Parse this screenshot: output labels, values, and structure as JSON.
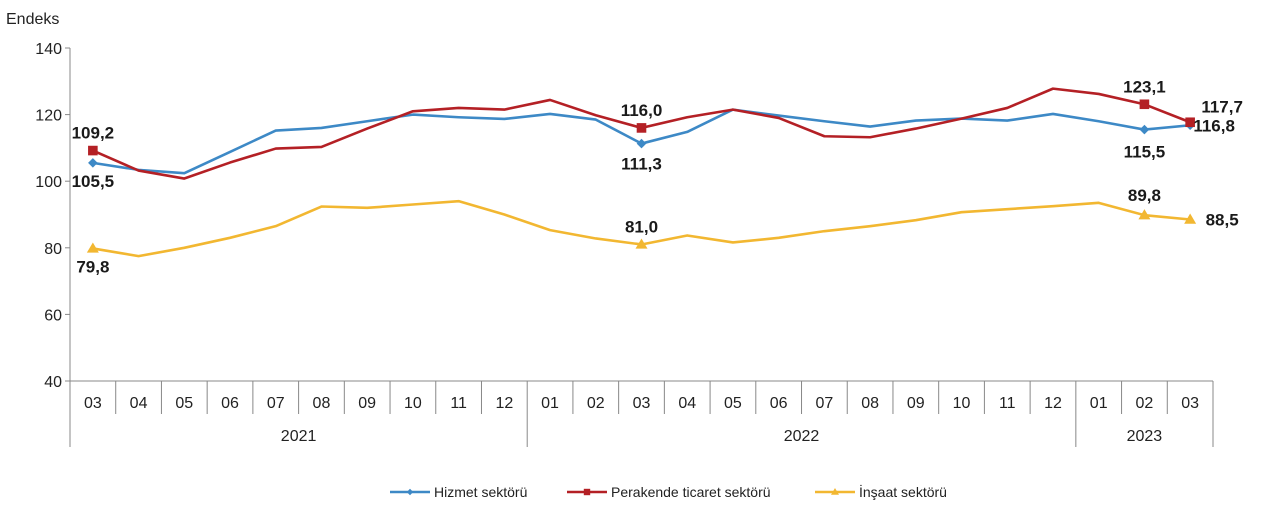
{
  "chart_data": {
    "type": "line",
    "title": "",
    "ylabel": "Endeks",
    "xlabel": "",
    "ylim": [
      40,
      140
    ],
    "yticks": [
      40,
      60,
      80,
      100,
      120,
      140
    ],
    "grid": false,
    "legend_position": "bottom",
    "categories": [
      "03",
      "04",
      "05",
      "06",
      "07",
      "08",
      "09",
      "10",
      "11",
      "12",
      "01",
      "02",
      "03",
      "04",
      "05",
      "06",
      "07",
      "08",
      "09",
      "10",
      "11",
      "12",
      "01",
      "02",
      "03"
    ],
    "year_groups": [
      {
        "label": "2021",
        "start": 0,
        "end": 9
      },
      {
        "label": "2022",
        "start": 10,
        "end": 21
      },
      {
        "label": "2023",
        "start": 22,
        "end": 24
      }
    ],
    "series": [
      {
        "name": "Hizmet sektörü",
        "color": "#3d89c6",
        "marker": "diamond",
        "values": [
          105.5,
          103.4,
          102.4,
          108.8,
          115.2,
          116.0,
          118.0,
          120.0,
          119.2,
          118.7,
          120.2,
          118.5,
          111.3,
          114.8,
          121.5,
          119.7,
          118.0,
          116.4,
          118.2,
          118.8,
          118.2,
          120.2,
          118.0,
          115.5,
          116.8
        ],
        "labels": {
          "0": "105,5",
          "12": "111,3",
          "23": "115,5",
          "24": "116,8"
        }
      },
      {
        "name": "Perakende ticaret sektörü",
        "color": "#b42025",
        "marker": "square",
        "values": [
          109.2,
          103.2,
          100.8,
          105.6,
          109.8,
          110.3,
          115.8,
          121.0,
          122.0,
          121.5,
          124.4,
          119.8,
          116.0,
          119.2,
          121.5,
          119.0,
          113.5,
          113.2,
          115.8,
          118.8,
          122.0,
          127.8,
          126.2,
          123.1,
          117.7
        ],
        "labels": {
          "0": "109,2",
          "12": "116,0",
          "23": "123,1",
          "24": "117,7"
        }
      },
      {
        "name": "İnşaat sektörü",
        "color": "#f2b731",
        "marker": "triangle",
        "values": [
          79.8,
          77.5,
          80.0,
          83.0,
          86.5,
          92.4,
          92.0,
          93.0,
          94.0,
          90.0,
          85.3,
          82.8,
          81.0,
          83.7,
          81.6,
          83.0,
          85.0,
          86.5,
          88.3,
          90.7,
          91.6,
          92.5,
          93.5,
          89.8,
          88.5
        ],
        "labels": {
          "0": "79,8",
          "12": "81,0",
          "23": "89,8",
          "24": "88,5"
        }
      }
    ]
  }
}
